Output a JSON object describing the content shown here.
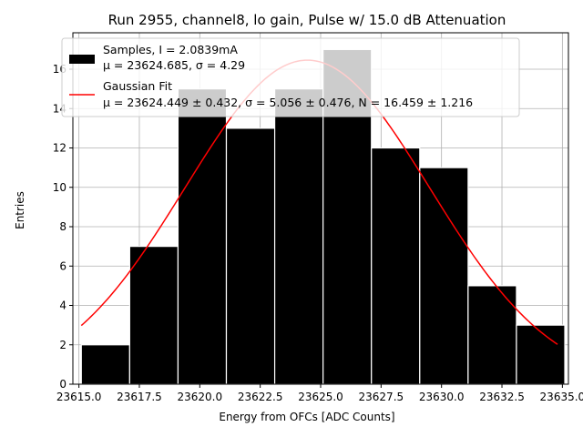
{
  "chart_data": {
    "type": "bar",
    "title": "Run 2955, channel8, lo gain, Pulse w/ 15.0 dB Attenuation",
    "xlabel": "Energy from OFCs [ADC Counts]",
    "ylabel": "Entries",
    "xlim": [
      23614.75,
      23635.25
    ],
    "ylim": [
      0,
      17.85
    ],
    "xticks": [
      23615.0,
      23617.5,
      23620.0,
      23622.5,
      23625.0,
      23627.5,
      23630.0,
      23632.5,
      23635.0
    ],
    "xtick_labels": [
      "23615.0",
      "23617.5",
      "23620.0",
      "23622.5",
      "23625.0",
      "23627.5",
      "23630.0",
      "23632.5",
      "23635.0"
    ],
    "yticks": [
      0,
      2,
      4,
      6,
      8,
      10,
      12,
      14,
      16
    ],
    "ytick_labels": [
      "0",
      "2",
      "4",
      "6",
      "8",
      "10",
      "12",
      "14",
      "16"
    ],
    "grid": true,
    "legend_position": "top-left",
    "colors": {
      "bars": "#000000",
      "fit": "#ff0000"
    },
    "series": [
      {
        "name": "Samples, I = 2.0839mA",
        "stats": "μ = 23624.685, σ = 4.29",
        "bin_edges": [
          23615.1,
          23617.1,
          23619.1,
          23621.1,
          23623.1,
          23625.1,
          23627.1,
          23629.1,
          23631.1,
          23633.1,
          23635.1
        ],
        "values": [
          2,
          7,
          15,
          13,
          15,
          17,
          12,
          11,
          5,
          3
        ]
      },
      {
        "name": "Gaussian Fit",
        "stats": "μ = 23624.449 ± 0.432, σ = 5.056 ± 0.476, N = 16.459 ± 1.216",
        "type": "line",
        "mu": 23624.449,
        "sigma": 5.056,
        "amplitude": 16.459,
        "x_range": [
          23615.1,
          23634.8
        ]
      }
    ]
  }
}
